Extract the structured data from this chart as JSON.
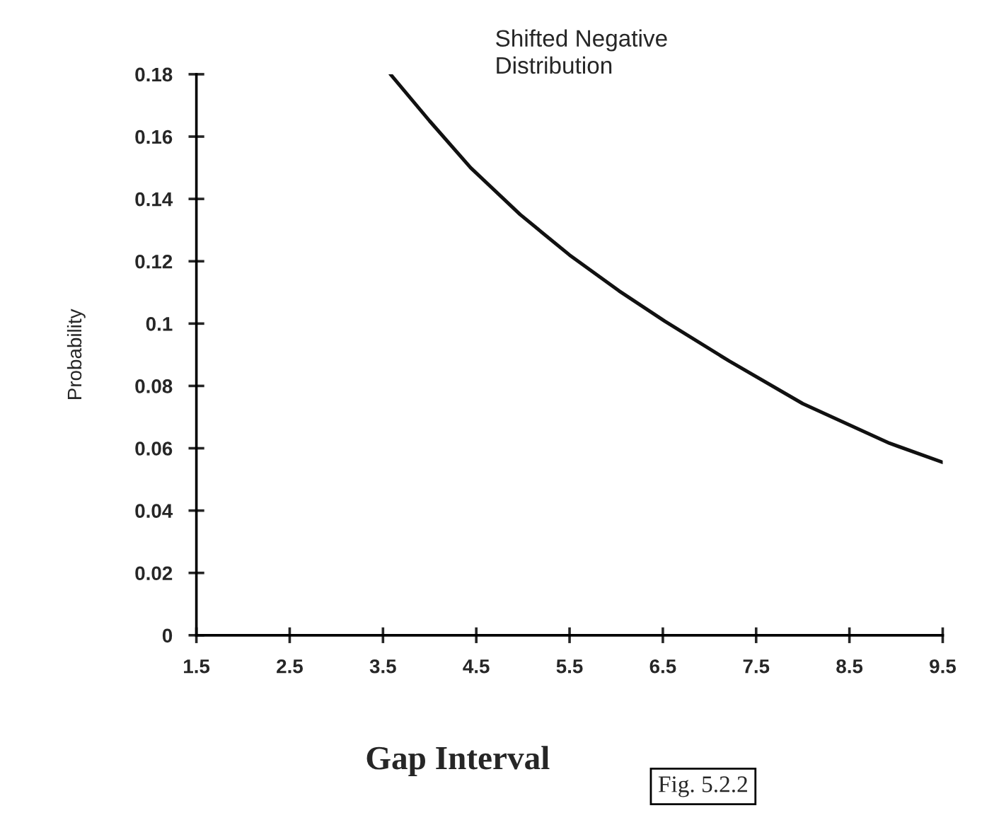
{
  "chart_data": {
    "type": "line",
    "xlabel": "Gap Interval",
    "ylabel": "Probability",
    "annotations": [
      "Shifted Negative\nDistribution",
      "Fig. 5.2.2"
    ],
    "x": [
      3.58,
      4.0,
      4.44,
      4.97,
      5.5,
      6.03,
      6.52,
      7.21,
      8.0,
      8.93,
      9.5
    ],
    "series": [
      {
        "color": "#111111",
        "values": [
          0.18,
          0.165,
          0.15,
          0.135,
          0.122,
          0.1105,
          0.1008,
          0.088,
          0.0743,
          0.0616,
          0.0555
        ]
      }
    ],
    "xlim": [
      1.5,
      9.5
    ],
    "xticks": [
      1.5,
      2.5,
      3.5,
      4.5,
      5.5,
      6.5,
      7.5,
      8.5,
      9.5
    ],
    "ylim": [
      0,
      0.18
    ],
    "yticks": [
      0,
      0.02,
      0.04,
      0.06,
      0.08,
      0.1,
      0.12,
      0.14,
      0.16,
      0.18
    ],
    "grid": false,
    "marker": "none",
    "line_style": "solid"
  }
}
